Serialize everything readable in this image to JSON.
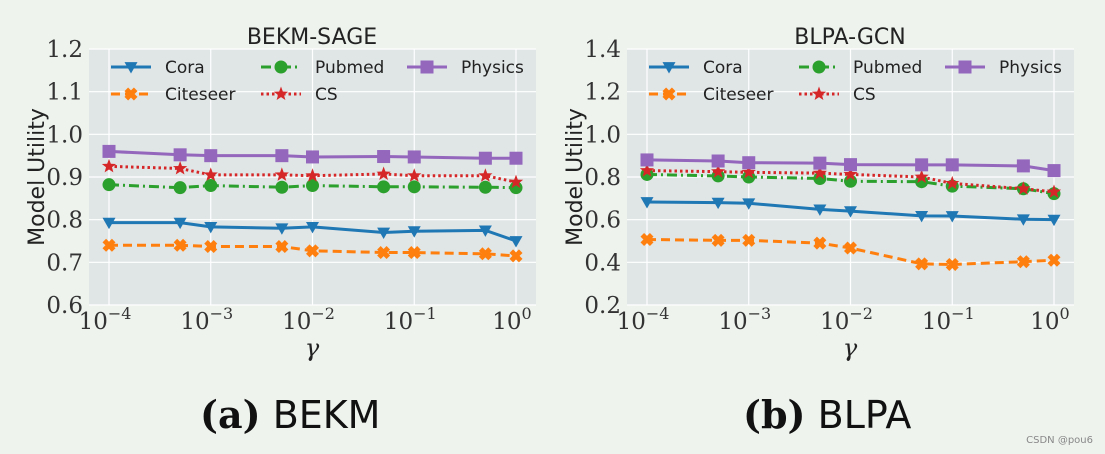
{
  "chart_data": [
    {
      "type": "line",
      "title": "BEKM-SAGE",
      "xlabel": "γ",
      "ylabel": "Model Utility",
      "xscale": "log",
      "x": [
        0.0001,
        0.0005,
        0.001,
        0.005,
        0.01,
        0.05,
        0.1,
        0.5,
        1
      ],
      "xticks": [
        0.0001,
        0.001,
        0.01,
        0.1,
        1
      ],
      "xtick_exponents": [
        "−4",
        "−3",
        "−2",
        "−1",
        "0"
      ],
      "xtick_base": "10",
      "ylim": [
        0.6,
        1.2
      ],
      "yticks": [
        "0.6",
        "0.7",
        "0.8",
        "0.9",
        "1.0",
        "1.1",
        "1.2"
      ],
      "grid": true,
      "legend": "top, 3 columns",
      "series": [
        {
          "name": "Cora",
          "color": "#1f77b4",
          "marker": "triangle-down",
          "dash": "solid",
          "values": [
            0.793,
            0.793,
            0.783,
            0.78,
            0.783,
            0.77,
            0.773,
            0.775,
            0.75
          ]
        },
        {
          "name": "Citeseer",
          "color": "#ff7f0e",
          "marker": "x",
          "dash": "dashed",
          "values": [
            0.74,
            0.74,
            0.737,
            0.737,
            0.727,
            0.723,
            0.723,
            0.72,
            0.715
          ]
        },
        {
          "name": "Pubmed",
          "color": "#2ca02c",
          "marker": "circle",
          "dash": "dashdot",
          "values": [
            0.882,
            0.875,
            0.88,
            0.876,
            0.88,
            0.877,
            0.877,
            0.876,
            0.875
          ]
        },
        {
          "name": "CS",
          "color": "#d62728",
          "marker": "star",
          "dash": "dotted",
          "values": [
            0.925,
            0.92,
            0.905,
            0.905,
            0.903,
            0.907,
            0.903,
            0.903,
            0.888
          ]
        },
        {
          "name": "Physics",
          "color": "#9467bd",
          "marker": "square",
          "dash": "solid",
          "values": [
            0.96,
            0.952,
            0.95,
            0.95,
            0.947,
            0.948,
            0.947,
            0.944,
            0.944
          ]
        }
      ]
    },
    {
      "type": "line",
      "title": "BLPA-GCN",
      "xlabel": "γ",
      "ylabel": "Model Utility",
      "xscale": "log",
      "x": [
        0.0001,
        0.0005,
        0.001,
        0.005,
        0.01,
        0.05,
        0.1,
        0.5,
        1
      ],
      "xticks": [
        0.0001,
        0.001,
        0.01,
        0.1,
        1
      ],
      "xtick_exponents": [
        "−4",
        "−3",
        "−2",
        "−1",
        "0"
      ],
      "xtick_base": "10",
      "ylim": [
        0.2,
        1.4
      ],
      "yticks": [
        "0.2",
        "0.4",
        "0.6",
        "0.8",
        "1.0",
        "1.2",
        "1.4"
      ],
      "grid": true,
      "legend": "top, 3 columns",
      "series": [
        {
          "name": "Cora",
          "color": "#1f77b4",
          "marker": "triangle-down",
          "dash": "solid",
          "values": [
            0.683,
            0.68,
            0.677,
            0.648,
            0.64,
            0.618,
            0.617,
            0.602,
            0.6
          ]
        },
        {
          "name": "Citeseer",
          "color": "#ff7f0e",
          "marker": "x",
          "dash": "dashed",
          "values": [
            0.507,
            0.503,
            0.503,
            0.49,
            0.467,
            0.393,
            0.39,
            0.403,
            0.41
          ]
        },
        {
          "name": "Pubmed",
          "color": "#2ca02c",
          "marker": "circle",
          "dash": "dashdot",
          "values": [
            0.812,
            0.805,
            0.8,
            0.793,
            0.78,
            0.778,
            0.757,
            0.745,
            0.722
          ]
        },
        {
          "name": "CS",
          "color": "#d62728",
          "marker": "star",
          "dash": "dotted",
          "values": [
            0.83,
            0.825,
            0.822,
            0.818,
            0.812,
            0.8,
            0.77,
            0.745,
            0.73
          ]
        },
        {
          "name": "Physics",
          "color": "#9467bd",
          "marker": "square",
          "dash": "solid",
          "values": [
            0.88,
            0.875,
            0.867,
            0.865,
            0.858,
            0.857,
            0.857,
            0.852,
            0.83
          ]
        }
      ]
    }
  ],
  "captions": {
    "a": {
      "label": "(a)",
      "text": "BEKM"
    },
    "b": {
      "label": "(b)",
      "text": "BLPA"
    }
  },
  "watermark": "CSDN @pou6"
}
